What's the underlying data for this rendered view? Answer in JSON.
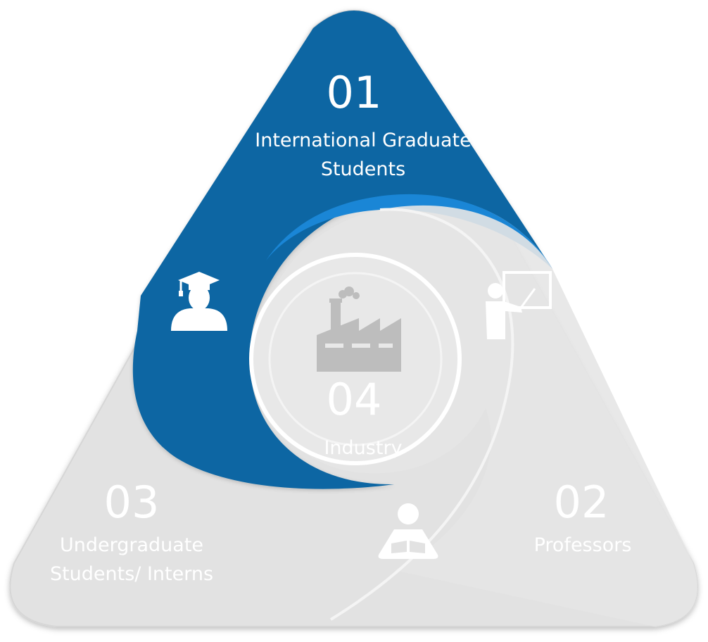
{
  "diagram": {
    "segments": [
      {
        "number": "01",
        "lines": [
          "International Graduate",
          "Students"
        ],
        "icon": "graduate-cap-icon"
      },
      {
        "number": "02",
        "lines": [
          "Professors"
        ],
        "icon": "teacher-board-icon"
      },
      {
        "number": "03",
        "lines": [
          "Undergraduate",
          "Students/ Interns"
        ],
        "icon": "reader-book-icon"
      },
      {
        "number": "04",
        "lines": [
          "Industry"
        ],
        "icon": "factory-icon"
      }
    ]
  },
  "colors": {
    "blue": "#0a67a4",
    "blue_edge": "#1e88d8",
    "grey": "#e3e3e3",
    "grey_light": "#ededed",
    "text_on_grey": "#ffffff",
    "icon_grey": "#b9b9b9"
  }
}
